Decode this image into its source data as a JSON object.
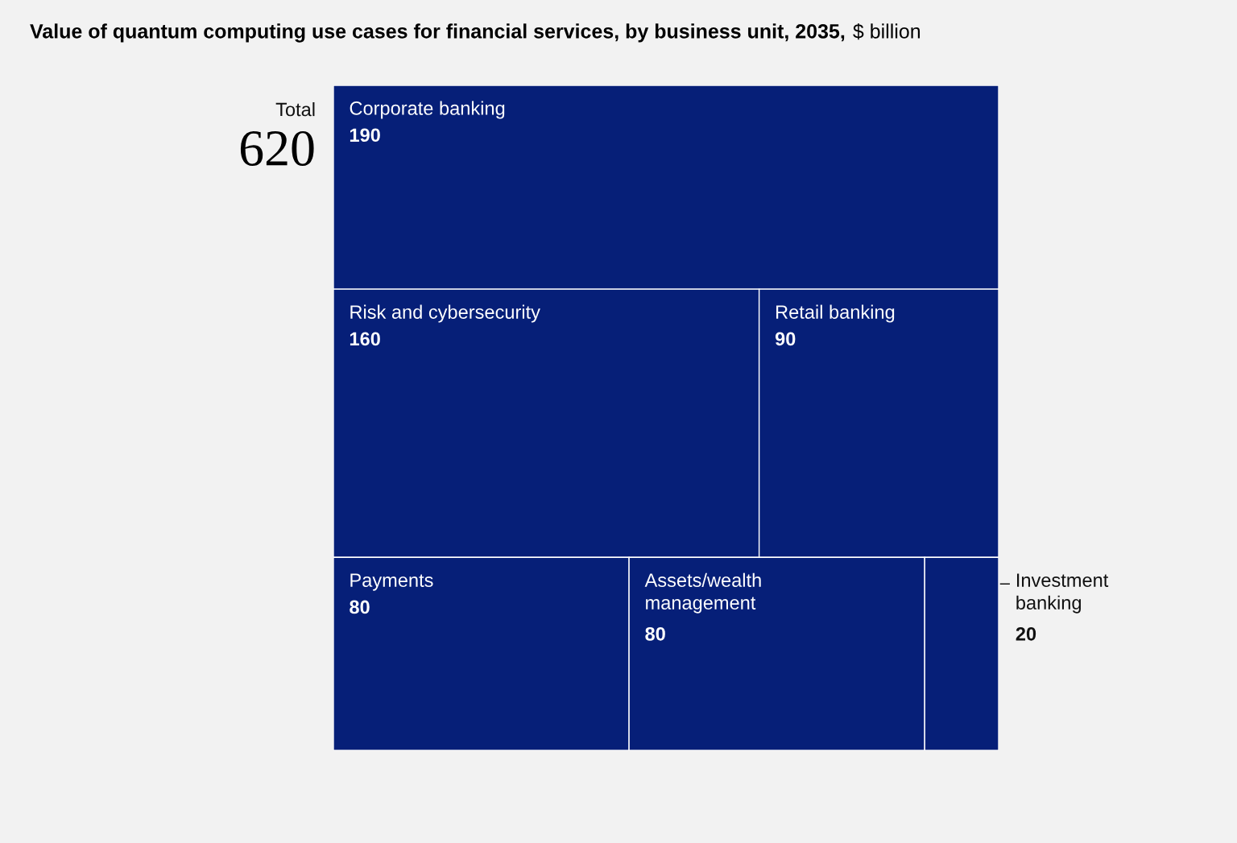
{
  "chart_data": {
    "type": "other",
    "title": "Value of quantum computing use cases for financial services, by business unit, 2035,",
    "subtitle": "$ billion",
    "categories": [
      "Corporate banking",
      "Risk and cybersecurity",
      "Retail banking",
      "Payments",
      "Assets/wealth\nmanagement",
      "Investment\nbanking"
    ],
    "values": [
      190,
      160,
      90,
      80,
      80,
      20
    ],
    "color": "#061f78",
    "data_labels": true,
    "annotations": [
      "Total",
      "620"
    ]
  }
}
